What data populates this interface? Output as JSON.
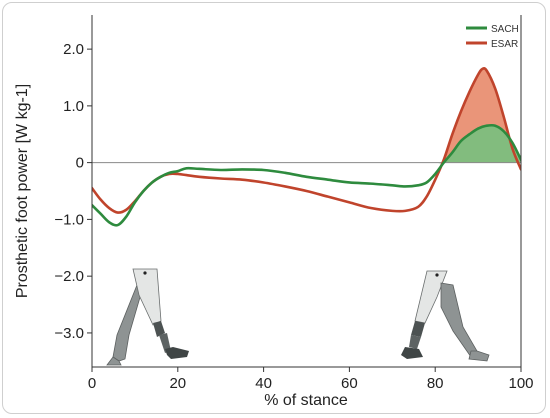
{
  "chart_data": {
    "type": "line",
    "title": "",
    "xlabel": "% of stance",
    "ylabel": "Prosthetic foot power [W kg-1]",
    "xlim": [
      0,
      100
    ],
    "ylim": [
      -3.6,
      2.6
    ],
    "xticks": [
      0,
      20,
      40,
      60,
      80,
      100
    ],
    "xtick_labels": [
      "0",
      "20",
      "40",
      "60",
      "80",
      "100"
    ],
    "yticks": [
      2.0,
      1.0,
      0,
      -1.0,
      -2.0,
      -3.0
    ],
    "ytick_labels": [
      "2.0",
      "1.0",
      "0",
      "−1.0",
      "−2.0",
      "−3.0"
    ],
    "grid": false,
    "zero_line": true,
    "legend_position": "top-right",
    "series": [
      {
        "name": "SACH",
        "color": "#2e8b3e",
        "fill_color": "#77c07e",
        "x": [
          0,
          2,
          4,
          6,
          8,
          10,
          12,
          14,
          16,
          18,
          20,
          22,
          25,
          30,
          35,
          40,
          45,
          50,
          55,
          60,
          65,
          70,
          73,
          76,
          78,
          80,
          82,
          84,
          86,
          88,
          90,
          92,
          94,
          96,
          98,
          100
        ],
        "y": [
          -0.75,
          -0.9,
          -1.05,
          -1.1,
          -0.95,
          -0.7,
          -0.5,
          -0.35,
          -0.25,
          -0.18,
          -0.15,
          -0.1,
          -0.11,
          -0.13,
          -0.12,
          -0.13,
          -0.18,
          -0.25,
          -0.3,
          -0.35,
          -0.37,
          -0.4,
          -0.42,
          -0.4,
          -0.35,
          -0.2,
          0.0,
          0.18,
          0.38,
          0.5,
          0.6,
          0.65,
          0.65,
          0.55,
          0.35,
          0.05
        ]
      },
      {
        "name": "ESAR",
        "color": "#c0442c",
        "fill_color": "#e8896a",
        "x": [
          0,
          2,
          4,
          6,
          8,
          10,
          12,
          14,
          16,
          18,
          20,
          22,
          25,
          30,
          35,
          40,
          45,
          50,
          55,
          60,
          65,
          70,
          73,
          76,
          78,
          80,
          82,
          84,
          86,
          88,
          90,
          91,
          92,
          94,
          96,
          98,
          100
        ],
        "y": [
          -0.45,
          -0.65,
          -0.8,
          -0.88,
          -0.83,
          -0.68,
          -0.5,
          -0.35,
          -0.25,
          -0.2,
          -0.2,
          -0.22,
          -0.25,
          -0.28,
          -0.3,
          -0.35,
          -0.42,
          -0.5,
          -0.6,
          -0.7,
          -0.8,
          -0.85,
          -0.85,
          -0.78,
          -0.6,
          -0.3,
          0.05,
          0.5,
          0.9,
          1.25,
          1.55,
          1.65,
          1.62,
          1.3,
          0.8,
          0.25,
          -0.12
        ]
      }
    ]
  }
}
